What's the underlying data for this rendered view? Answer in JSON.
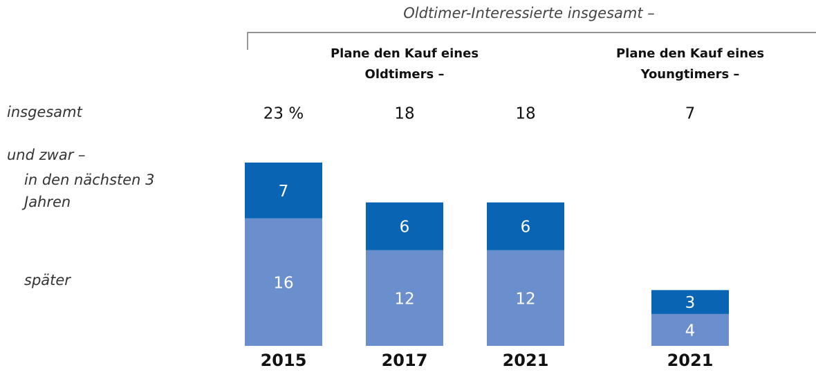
{
  "chart_data": {
    "type": "stacked-bar",
    "header": "Oldtimer-Interessierte insgesamt –",
    "groups": [
      "Plane den Kauf eines Oldtimers –",
      "Plane den Kauf eines Youngtimers –"
    ],
    "row_labels": [
      "insgesamt",
      "und zwar –"
    ],
    "categories": [
      "2015",
      "2017",
      "2021",
      "2021"
    ],
    "totals": {
      "values": [
        23,
        18,
        18,
        7
      ],
      "value_labels": [
        "23 %",
        "18",
        "18",
        "7"
      ]
    },
    "series": [
      {
        "name": "in den nächsten 3 Jahren",
        "color": "#0a64b4",
        "values": [
          7,
          6,
          6,
          3
        ]
      },
      {
        "name": "später",
        "color": "#6b8fcc",
        "values": [
          16,
          12,
          12,
          4
        ]
      }
    ]
  }
}
